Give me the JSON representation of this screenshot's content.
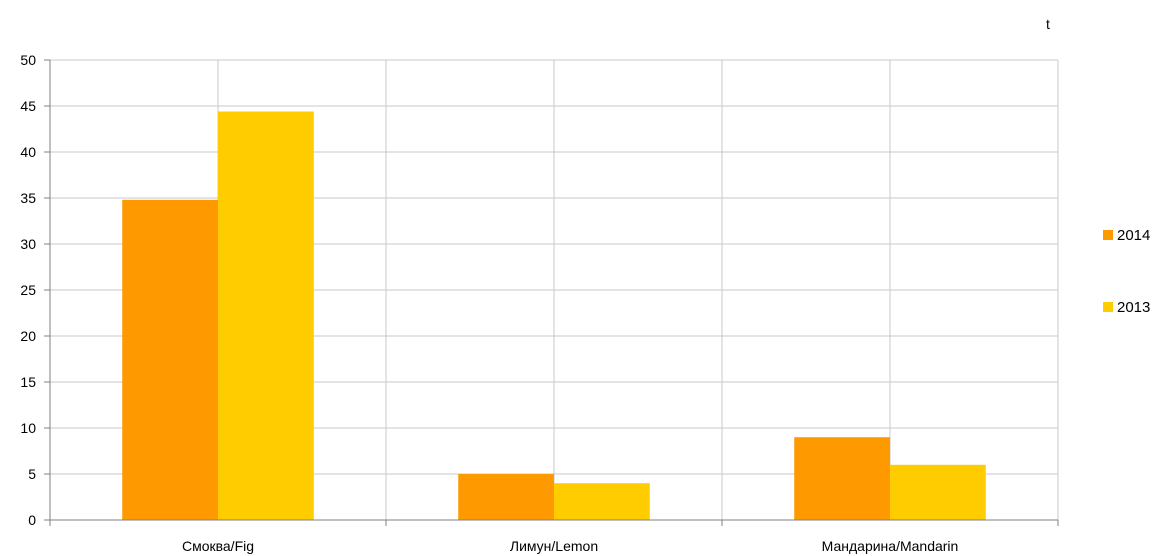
{
  "chart_data": {
    "type": "bar",
    "unit": "t",
    "categories": [
      "Смоква/Fig",
      "Лимун/Lemon",
      "Мандарина/Mandarin"
    ],
    "series": [
      {
        "name": "2014",
        "values": [
          34.8,
          5.0,
          9.0
        ],
        "color": "#FF9900"
      },
      {
        "name": "2013",
        "values": [
          44.4,
          4.0,
          6.0
        ],
        "color": "#FFCC00"
      }
    ],
    "ylim": [
      0,
      50
    ],
    "yticks": [
      0,
      5,
      10,
      15,
      20,
      25,
      30,
      35,
      40,
      45,
      50
    ],
    "grid": true,
    "legend": "right",
    "title": "",
    "xlabel": "",
    "ylabel": ""
  }
}
